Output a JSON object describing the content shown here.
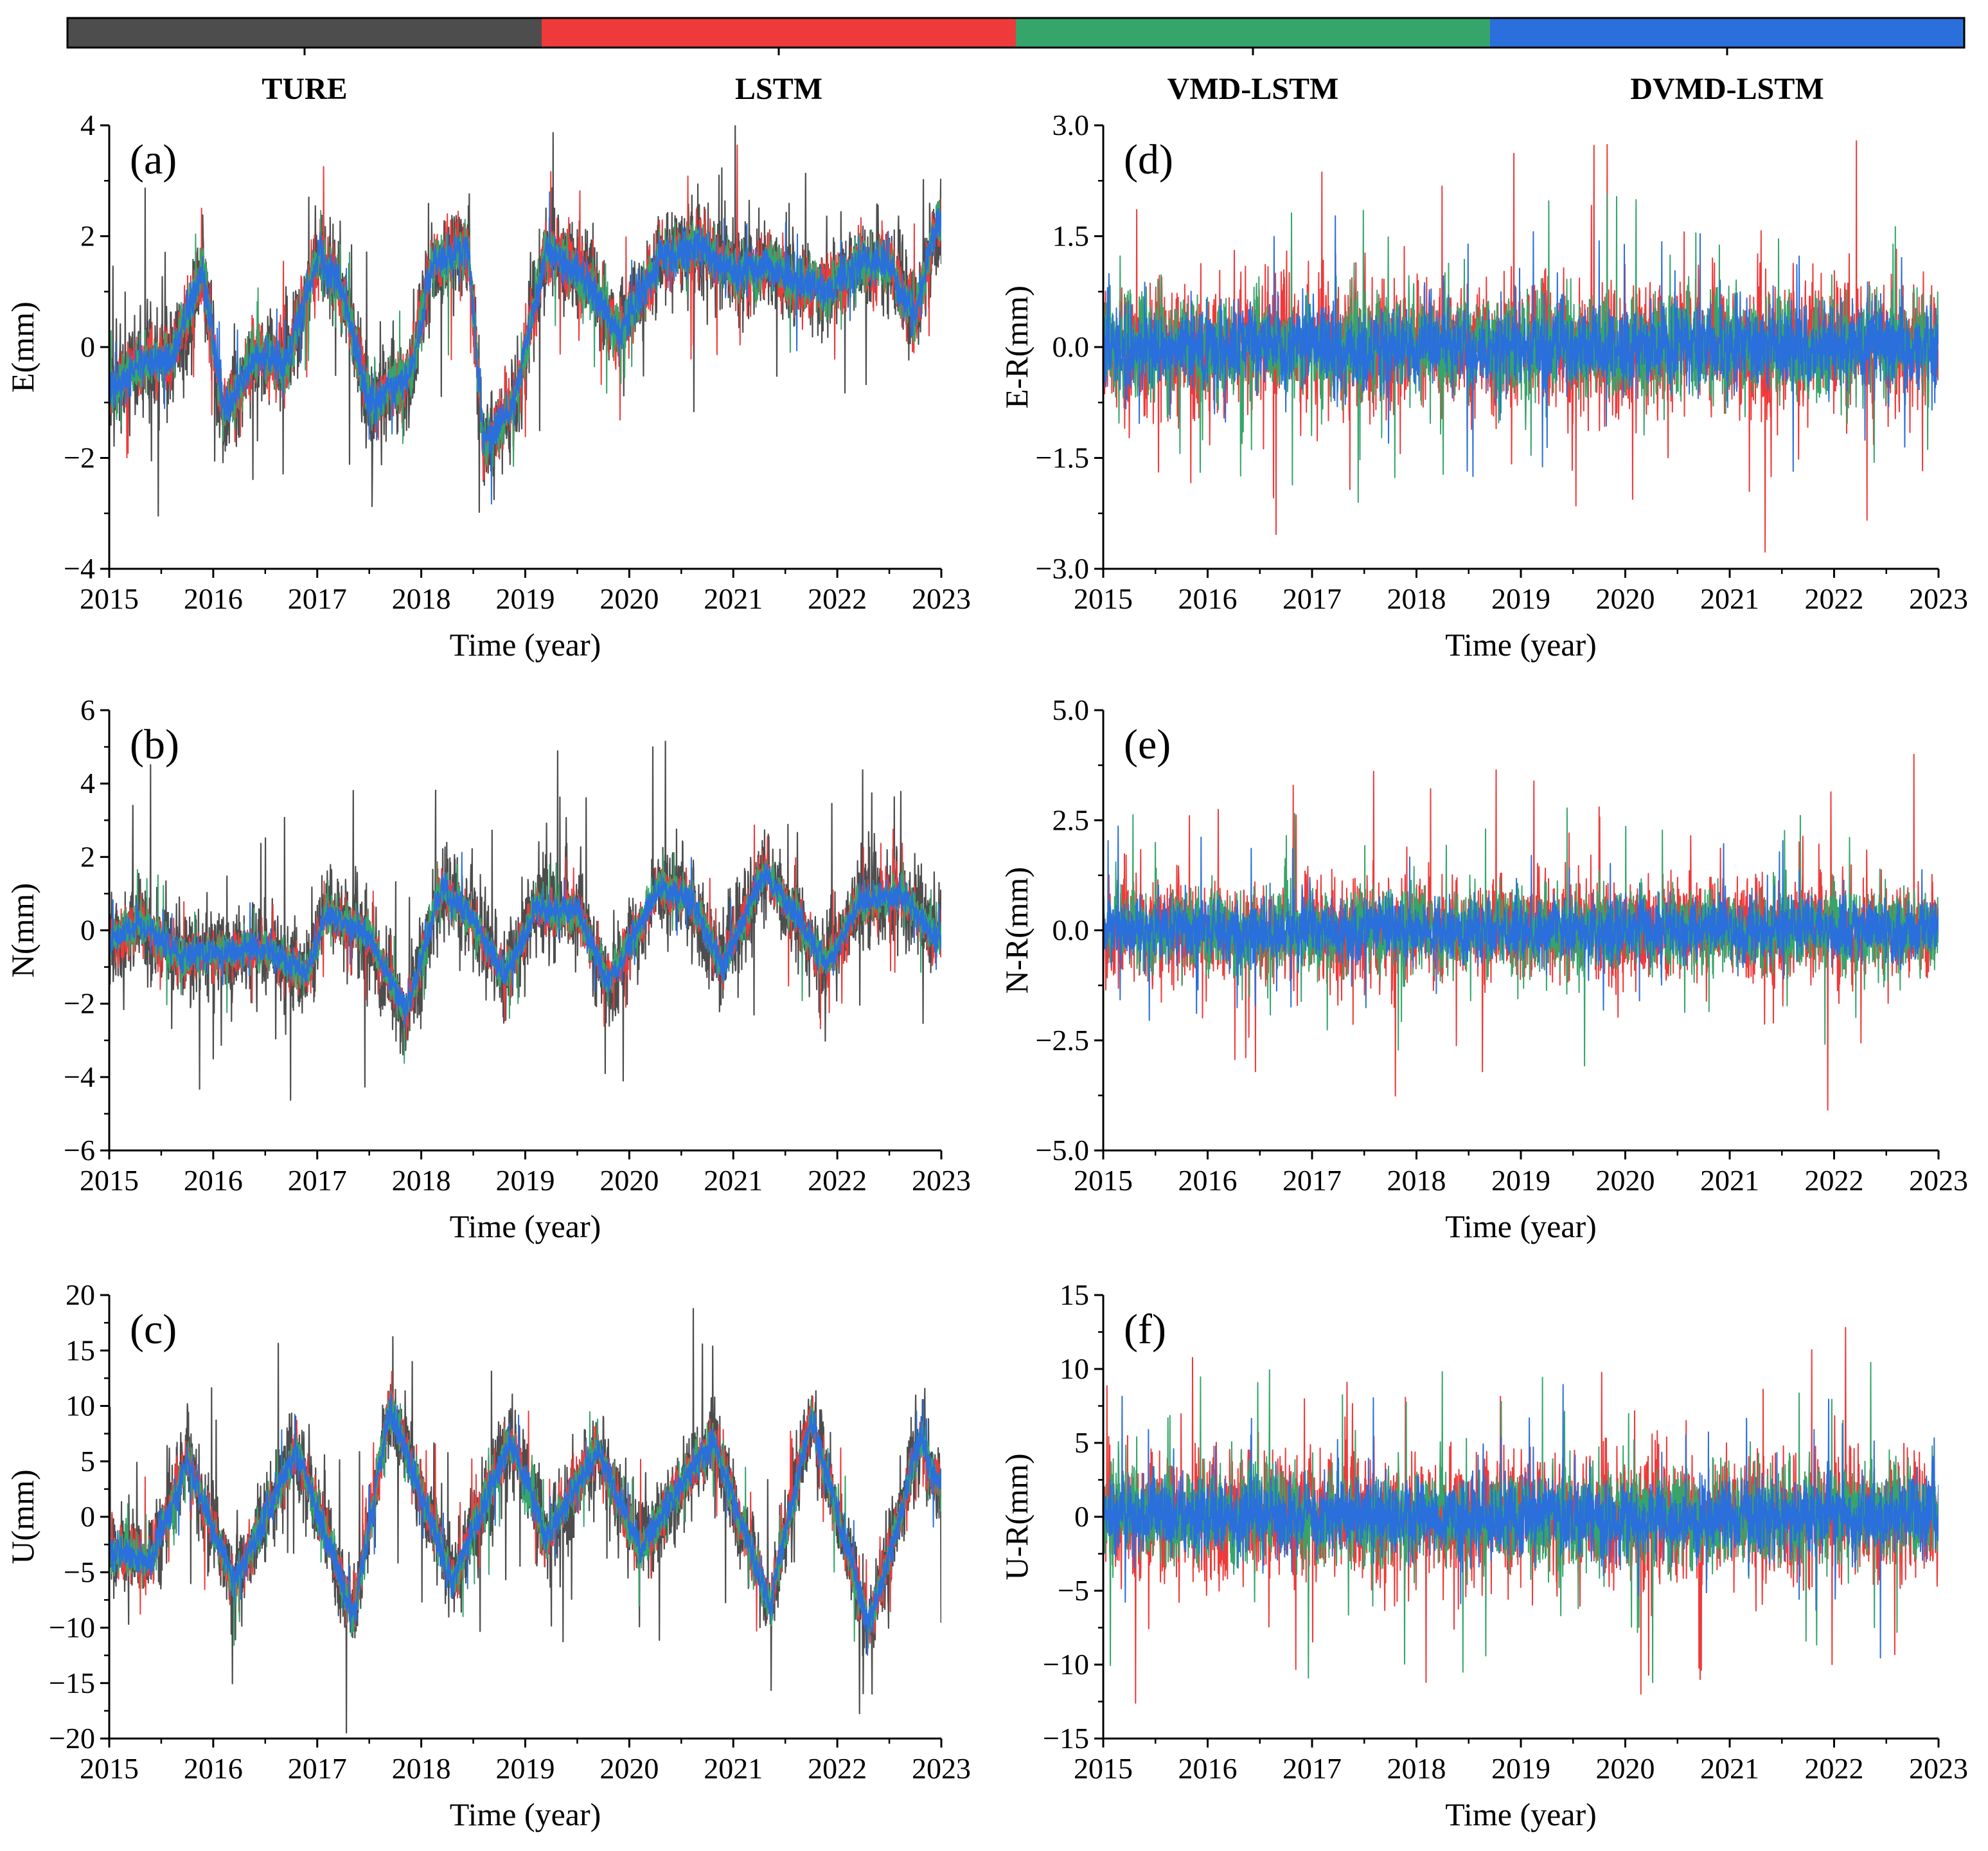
{
  "legend": {
    "items": [
      {
        "label": "TURE",
        "color": "#4d4d4d"
      },
      {
        "label": "LSTM",
        "color": "#ee3a3a"
      },
      {
        "label": "VMD-LSTM",
        "color": "#36a56a"
      },
      {
        "label": "DVMD-LSTM",
        "color": "#2a6fdb"
      }
    ]
  },
  "chart_data": [
    {
      "type": "line",
      "panel": "(a)",
      "ylabel": "E(mm)",
      "xlabel": "Time (year)",
      "xlim": [
        2015,
        2023
      ],
      "ylim": [
        -4,
        4
      ],
      "xticks": [
        "2015",
        "2016",
        "2017",
        "2018",
        "2019",
        "2020",
        "2021",
        "2022",
        "2023"
      ],
      "yticks": [
        "-4",
        "-2",
        "0",
        "2",
        "4"
      ],
      "trend": {
        "x": [
          2015,
          2015.3,
          2015.6,
          2015.9,
          2016.1,
          2016.4,
          2016.7,
          2017.0,
          2017.2,
          2017.5,
          2017.9,
          2018.1,
          2018.45,
          2018.6,
          2018.9,
          2019.2,
          2019.6,
          2019.9,
          2020.3,
          2020.7,
          2021.0,
          2021.3,
          2021.6,
          2021.9,
          2022.2,
          2022.5,
          2022.75,
          2022.95
        ],
        "y": [
          -0.8,
          -0.3,
          -0.2,
          1.4,
          -1.2,
          -0.2,
          -0.3,
          1.6,
          1.3,
          -1.0,
          -0.5,
          1.5,
          1.8,
          -1.8,
          -1.0,
          1.8,
          1.2,
          0.2,
          1.6,
          1.8,
          1.3,
          1.5,
          1.2,
          1.0,
          1.5,
          1.5,
          0.5,
          2.2
        ]
      },
      "noise": {
        "TURE": 0.75,
        "LSTM": 0.5,
        "VMD-LSTM": 0.4,
        "DVMD-LSTM": 0.3
      }
    },
    {
      "type": "line",
      "panel": "(b)",
      "ylabel": "N(mm)",
      "xlabel": "Time (year)",
      "xlim": [
        2015,
        2023
      ],
      "ylim": [
        -6,
        6
      ],
      "xticks": [
        "2015",
        "2016",
        "2017",
        "2018",
        "2019",
        "2020",
        "2021",
        "2022",
        "2023"
      ],
      "yticks": [
        "-6",
        "-4",
        "-2",
        "0",
        "2",
        "4",
        "6"
      ],
      "trend": {
        "x": [
          2015,
          2015.3,
          2015.7,
          2016.0,
          2016.5,
          2016.9,
          2017.1,
          2017.5,
          2017.85,
          2018.2,
          2018.5,
          2018.8,
          2019.1,
          2019.5,
          2019.8,
          2020.3,
          2020.6,
          2020.9,
          2021.3,
          2021.6,
          2021.9,
          2022.2,
          2022.6,
          2022.95
        ],
        "y": [
          -0.3,
          0.2,
          -0.8,
          -0.6,
          -0.5,
          -1.2,
          0.5,
          -0.2,
          -2.2,
          1.2,
          0.3,
          -1.3,
          0.6,
          0.5,
          -1.4,
          1.2,
          0.8,
          -1.0,
          1.6,
          0.4,
          -1.0,
          0.8,
          1.0,
          -0.2
        ]
      },
      "noise": {
        "TURE": 1.1,
        "LSTM": 0.55,
        "VMD-LSTM": 0.45,
        "DVMD-LSTM": 0.35
      }
    },
    {
      "type": "line",
      "panel": "(c)",
      "ylabel": "U(mm)",
      "xlabel": "Time (year)",
      "xlim": [
        2015,
        2023
      ],
      "ylim": [
        -20,
        20
      ],
      "xticks": [
        "2015",
        "2016",
        "2017",
        "2018",
        "2019",
        "2020",
        "2021",
        "2022",
        "2023"
      ],
      "yticks": [
        "-20",
        "-15",
        "-10",
        "-5",
        "0",
        "5",
        "10",
        "15",
        "20"
      ],
      "trend": {
        "x": [
          2015,
          2015.4,
          2015.75,
          2016.2,
          2016.8,
          2017.35,
          2017.7,
          2018.3,
          2018.85,
          2019.2,
          2019.7,
          2020.1,
          2020.8,
          2021.35,
          2021.75,
          2022.3,
          2022.8,
          2022.95
        ],
        "y": [
          -3,
          -4,
          5,
          -6,
          6,
          -9,
          10,
          -6,
          7,
          -2,
          6,
          -3,
          7,
          -8,
          9,
          -10,
          7,
          3
        ]
      },
      "noise": {
        "TURE": 3.5,
        "LSTM": 2.0,
        "VMD-LSTM": 1.6,
        "DVMD-LSTM": 1.3
      }
    },
    {
      "type": "line",
      "panel": "(d)",
      "ylabel": "E-R(mm)",
      "xlabel": "Time (year)",
      "xlim": [
        2015,
        2023
      ],
      "ylim": [
        -3.0,
        3.0
      ],
      "xticks": [
        "2015",
        "2016",
        "2017",
        "2018",
        "2019",
        "2020",
        "2021",
        "2022",
        "2023"
      ],
      "yticks": [
        "-3.0",
        "-1.5",
        "0.0",
        "1.5",
        "3.0"
      ],
      "trend": {
        "x": [
          2015,
          2023
        ],
        "y": [
          0,
          0
        ]
      },
      "noise": {
        "LSTM": 0.75,
        "VMD-LSTM": 0.6,
        "DVMD-LSTM": 0.45
      }
    },
    {
      "type": "line",
      "panel": "(e)",
      "ylabel": "N-R(mm)",
      "xlabel": "Time (year)",
      "xlim": [
        2015,
        2023
      ],
      "ylim": [
        -5.0,
        5.0
      ],
      "xticks": [
        "2015",
        "2016",
        "2017",
        "2018",
        "2019",
        "2020",
        "2021",
        "2022",
        "2023"
      ],
      "yticks": [
        "-5.0",
        "-2.5",
        "0.0",
        "2.5",
        "5.0"
      ],
      "trend": {
        "x": [
          2015,
          2023
        ],
        "y": [
          0,
          0
        ]
      },
      "noise": {
        "LSTM": 1.0,
        "VMD-LSTM": 0.8,
        "DVMD-LSTM": 0.6
      }
    },
    {
      "type": "line",
      "panel": "(f)",
      "ylabel": "U-R(mm)",
      "xlabel": "Time (year)",
      "xlim": [
        2015,
        2023
      ],
      "ylim": [
        -15,
        15
      ],
      "xticks": [
        "2015",
        "2016",
        "2017",
        "2018",
        "2019",
        "2020",
        "2021",
        "2022",
        "2023"
      ],
      "yticks": [
        "-15",
        "-10",
        "-5",
        "0",
        "5",
        "10",
        "15"
      ],
      "trend": {
        "x": [
          2015,
          2023
        ],
        "y": [
          0,
          0
        ]
      },
      "noise": {
        "LSTM": 3.6,
        "VMD-LSTM": 2.8,
        "DVMD-LSTM": 2.1
      }
    }
  ]
}
